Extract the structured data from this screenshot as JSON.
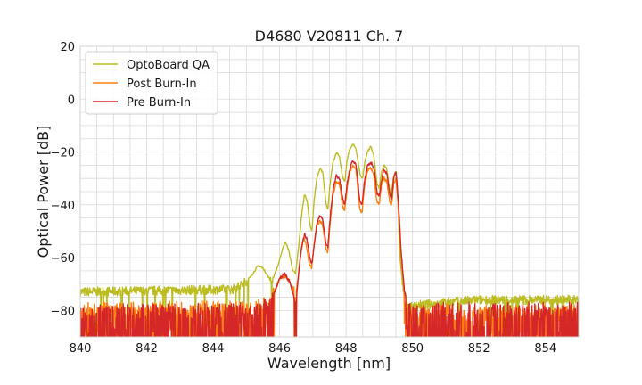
{
  "chart_data": {
    "type": "line",
    "title": "D4680 V20811 Ch. 7",
    "xlabel": "Wavelength [nm]",
    "ylabel": "Optical Power [dB]",
    "xlim": [
      840,
      855
    ],
    "ylim": [
      -90,
      20
    ],
    "xticks": [
      "840",
      "842",
      "844",
      "846",
      "848",
      "850",
      "852",
      "854"
    ],
    "yticks": [
      "20",
      "0",
      "−20",
      "−40",
      "−60",
      "−80"
    ],
    "grid": true,
    "legend_position": "top-left",
    "series": [
      {
        "name": "OptoBoard QA",
        "color": "#bcbd22",
        "noise_floor_db": -74,
        "points": [
          [
            840.0,
            -73
          ],
          [
            844.6,
            -72
          ],
          [
            844.9,
            -70
          ],
          [
            845.15,
            -67
          ],
          [
            845.35,
            -63
          ],
          [
            845.5,
            -64
          ],
          [
            845.7,
            -68
          ],
          [
            845.8,
            -68
          ],
          [
            845.95,
            -63
          ],
          [
            846.08,
            -57
          ],
          [
            846.17,
            -54
          ],
          [
            846.27,
            -57
          ],
          [
            846.4,
            -65
          ],
          [
            846.48,
            -66
          ],
          [
            846.58,
            -55
          ],
          [
            846.66,
            -44
          ],
          [
            846.75,
            -36
          ],
          [
            846.82,
            -38
          ],
          [
            846.92,
            -48
          ],
          [
            846.97,
            -50
          ],
          [
            847.04,
            -38
          ],
          [
            847.12,
            -30
          ],
          [
            847.22,
            -26
          ],
          [
            847.3,
            -28
          ],
          [
            847.4,
            -40
          ],
          [
            847.45,
            -42
          ],
          [
            847.52,
            -32
          ],
          [
            847.6,
            -24
          ],
          [
            847.72,
            -20
          ],
          [
            847.8,
            -22
          ],
          [
            847.9,
            -30
          ],
          [
            847.97,
            -31
          ],
          [
            848.02,
            -24
          ],
          [
            848.1,
            -19
          ],
          [
            848.22,
            -17
          ],
          [
            848.3,
            -19
          ],
          [
            848.43,
            -29
          ],
          [
            848.5,
            -30
          ],
          [
            848.56,
            -24
          ],
          [
            848.64,
            -20
          ],
          [
            848.74,
            -18
          ],
          [
            848.83,
            -21
          ],
          [
            848.93,
            -32
          ],
          [
            849.0,
            -34
          ],
          [
            849.06,
            -28
          ],
          [
            849.14,
            -25
          ],
          [
            849.22,
            -26
          ],
          [
            849.32,
            -35
          ],
          [
            849.36,
            -36
          ],
          [
            849.42,
            -30
          ],
          [
            849.5,
            -27
          ],
          [
            849.55,
            -36
          ],
          [
            849.62,
            -60
          ],
          [
            849.72,
            -72
          ],
          [
            849.8,
            -76
          ],
          [
            849.9,
            -79
          ],
          [
            850.2,
            -78
          ],
          [
            851.0,
            -77
          ],
          [
            852.0,
            -76
          ],
          [
            855.0,
            -76
          ]
        ]
      },
      {
        "name": "Post Burn-In",
        "color": "#ff7f0e",
        "noise_floor_db": -79,
        "points": [
          [
            840.0,
            -80
          ],
          [
            845.45,
            -79
          ],
          [
            845.7,
            -77
          ],
          [
            845.87,
            -72
          ],
          [
            846.0,
            -68
          ],
          [
            846.15,
            -67
          ],
          [
            846.3,
            -69
          ],
          [
            846.42,
            -74
          ],
          [
            846.48,
            -75
          ],
          [
            846.56,
            -67
          ],
          [
            846.65,
            -57
          ],
          [
            846.73,
            -53
          ],
          [
            846.8,
            -55
          ],
          [
            846.9,
            -63
          ],
          [
            846.96,
            -64
          ],
          [
            847.04,
            -55
          ],
          [
            847.12,
            -48
          ],
          [
            847.22,
            -46
          ],
          [
            847.3,
            -48
          ],
          [
            847.4,
            -57
          ],
          [
            847.45,
            -58
          ],
          [
            847.52,
            -47
          ],
          [
            847.6,
            -37
          ],
          [
            847.7,
            -31
          ],
          [
            847.8,
            -32
          ],
          [
            847.9,
            -41
          ],
          [
            847.96,
            -42
          ],
          [
            848.02,
            -35
          ],
          [
            848.1,
            -28
          ],
          [
            848.2,
            -25
          ],
          [
            848.3,
            -27
          ],
          [
            848.42,
            -42
          ],
          [
            848.48,
            -43
          ],
          [
            848.55,
            -33
          ],
          [
            848.65,
            -27
          ],
          [
            848.74,
            -26
          ],
          [
            848.83,
            -28
          ],
          [
            848.93,
            -39
          ],
          [
            849.0,
            -40
          ],
          [
            849.06,
            -33
          ],
          [
            849.13,
            -30
          ],
          [
            849.22,
            -31
          ],
          [
            849.32,
            -39
          ],
          [
            849.37,
            -40
          ],
          [
            849.43,
            -32
          ],
          [
            849.5,
            -30
          ],
          [
            849.57,
            -40
          ],
          [
            849.66,
            -60
          ],
          [
            849.76,
            -74
          ],
          [
            849.85,
            -80
          ],
          [
            850.0,
            -81
          ],
          [
            855.0,
            -81
          ]
        ]
      },
      {
        "name": "Pre Burn-In",
        "color": "#d62728",
        "noise_floor_db": -80,
        "points": [
          [
            840.0,
            -81
          ],
          [
            845.4,
            -80
          ],
          [
            845.65,
            -78
          ],
          [
            845.85,
            -73
          ],
          [
            846.0,
            -68
          ],
          [
            846.15,
            -66
          ],
          [
            846.3,
            -69
          ],
          [
            846.42,
            -74
          ],
          [
            846.5,
            -76
          ],
          [
            846.58,
            -65
          ],
          [
            846.66,
            -56
          ],
          [
            846.75,
            -51
          ],
          [
            846.82,
            -53
          ],
          [
            846.92,
            -61
          ],
          [
            846.98,
            -62
          ],
          [
            847.04,
            -55
          ],
          [
            847.12,
            -47
          ],
          [
            847.22,
            -44
          ],
          [
            847.3,
            -46
          ],
          [
            847.4,
            -55
          ],
          [
            847.45,
            -56
          ],
          [
            847.52,
            -45
          ],
          [
            847.6,
            -35
          ],
          [
            847.7,
            -29
          ],
          [
            847.8,
            -30
          ],
          [
            847.9,
            -38
          ],
          [
            847.96,
            -40
          ],
          [
            848.02,
            -33
          ],
          [
            848.1,
            -27
          ],
          [
            848.2,
            -23
          ],
          [
            848.3,
            -25
          ],
          [
            848.42,
            -39
          ],
          [
            848.48,
            -40
          ],
          [
            848.55,
            -31
          ],
          [
            848.65,
            -25
          ],
          [
            848.75,
            -24
          ],
          [
            848.84,
            -26
          ],
          [
            848.94,
            -36
          ],
          [
            849.0,
            -37
          ],
          [
            849.06,
            -31
          ],
          [
            849.13,
            -27
          ],
          [
            849.22,
            -28
          ],
          [
            849.32,
            -36
          ],
          [
            849.37,
            -38
          ],
          [
            849.43,
            -30
          ],
          [
            849.5,
            -27
          ],
          [
            849.57,
            -38
          ],
          [
            849.66,
            -58
          ],
          [
            849.76,
            -73
          ],
          [
            849.85,
            -79
          ],
          [
            850.0,
            -80
          ],
          [
            855.0,
            -80
          ]
        ]
      }
    ]
  }
}
